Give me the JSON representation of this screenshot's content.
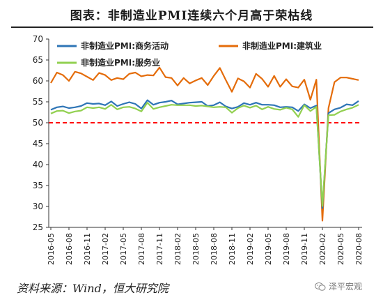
{
  "title": "图表：非制造业PMI连续六个月高于荣枯线",
  "source": "资料来源：Wind，恒大研究院",
  "watermark": "泽平宏观",
  "colors": {
    "commerce": "#2E75B6",
    "construction": "#E46C0A",
    "services": "#92D050",
    "threshold": "#FF0000"
  },
  "chart_data": {
    "type": "line",
    "ylim": [
      25,
      70
    ],
    "yticks": [
      25,
      30,
      35,
      40,
      45,
      50,
      55,
      60,
      65,
      70
    ],
    "x_tick_labels": [
      "2016-05",
      "2016-08",
      "2016-11",
      "2017-02",
      "2017-05",
      "2017-08",
      "2017-11",
      "2018-02",
      "2018-05",
      "2018-08",
      "2018-11",
      "2019-02",
      "2019-05",
      "2019-08",
      "2019-11",
      "2020-02",
      "2020-05",
      "2020-08"
    ],
    "x": [
      "2016-05",
      "2016-06",
      "2016-07",
      "2016-08",
      "2016-09",
      "2016-10",
      "2016-11",
      "2016-12",
      "2017-01",
      "2017-02",
      "2017-03",
      "2017-04",
      "2017-05",
      "2017-06",
      "2017-07",
      "2017-08",
      "2017-09",
      "2017-10",
      "2017-11",
      "2017-12",
      "2018-01",
      "2018-02",
      "2018-03",
      "2018-04",
      "2018-05",
      "2018-06",
      "2018-07",
      "2018-08",
      "2018-09",
      "2018-10",
      "2018-11",
      "2018-12",
      "2019-01",
      "2019-02",
      "2019-03",
      "2019-04",
      "2019-05",
      "2019-06",
      "2019-07",
      "2019-08",
      "2019-09",
      "2019-10",
      "2019-11",
      "2019-12",
      "2020-01",
      "2020-02",
      "2020-03",
      "2020-04",
      "2020-05",
      "2020-06",
      "2020-07",
      "2020-08"
    ],
    "threshold": 50,
    "legend_position": "top",
    "series": [
      {
        "name": "非制造业PMI:商务活动",
        "color_key": "commerce",
        "values": [
          53.1,
          53.7,
          53.9,
          53.5,
          53.7,
          54.0,
          54.7,
          54.5,
          54.6,
          54.2,
          55.1,
          54.0,
          54.5,
          54.9,
          54.5,
          53.4,
          55.4,
          54.3,
          54.8,
          55.0,
          55.3,
          54.4,
          54.6,
          54.8,
          54.9,
          55.0,
          54.0,
          54.2,
          54.9,
          53.9,
          53.4,
          53.8,
          54.7,
          54.3,
          54.8,
          54.3,
          54.3,
          54.2,
          53.7,
          53.8,
          53.7,
          52.8,
          54.4,
          53.5,
          54.1,
          29.6,
          52.3,
          53.2,
          53.6,
          54.4,
          54.2,
          55.2
        ]
      },
      {
        "name": "非制造业PMI:建筑业",
        "color_key": "construction",
        "values": [
          59.5,
          62.0,
          61.4,
          60.0,
          62.2,
          61.8,
          61.0,
          60.2,
          61.9,
          61.4,
          60.2,
          60.7,
          60.4,
          61.7,
          62.0,
          61.1,
          61.4,
          61.3,
          63.2,
          60.9,
          60.7,
          58.9,
          60.7,
          59.4,
          60.1,
          60.7,
          59.0,
          61.2,
          63.1,
          60.2,
          57.4,
          60.6,
          59.9,
          58.4,
          61.7,
          60.5,
          58.6,
          61.2,
          58.6,
          60.4,
          58.7,
          58.4,
          60.3,
          55.5,
          60.3,
          26.6,
          53.5,
          59.7,
          60.8,
          60.8,
          60.5,
          60.2
        ]
      },
      {
        "name": "非制造业PMI:服务业",
        "color_key": "services",
        "values": [
          52.2,
          52.8,
          52.9,
          52.3,
          52.7,
          52.9,
          53.7,
          53.5,
          53.7,
          53.3,
          54.3,
          53.2,
          53.7,
          53.8,
          53.4,
          52.7,
          54.8,
          53.3,
          53.7,
          54.0,
          54.3,
          54.2,
          54.2,
          54.2,
          54.0,
          54.1,
          53.9,
          53.7,
          53.8,
          53.7,
          52.4,
          53.5,
          54.1,
          53.6,
          54.1,
          53.2,
          53.8,
          53.3,
          53.1,
          53.6,
          53.2,
          51.4,
          54.2,
          52.8,
          53.8,
          30.1,
          51.8,
          51.9,
          52.7,
          53.2,
          53.6,
          54.3
        ]
      }
    ]
  }
}
